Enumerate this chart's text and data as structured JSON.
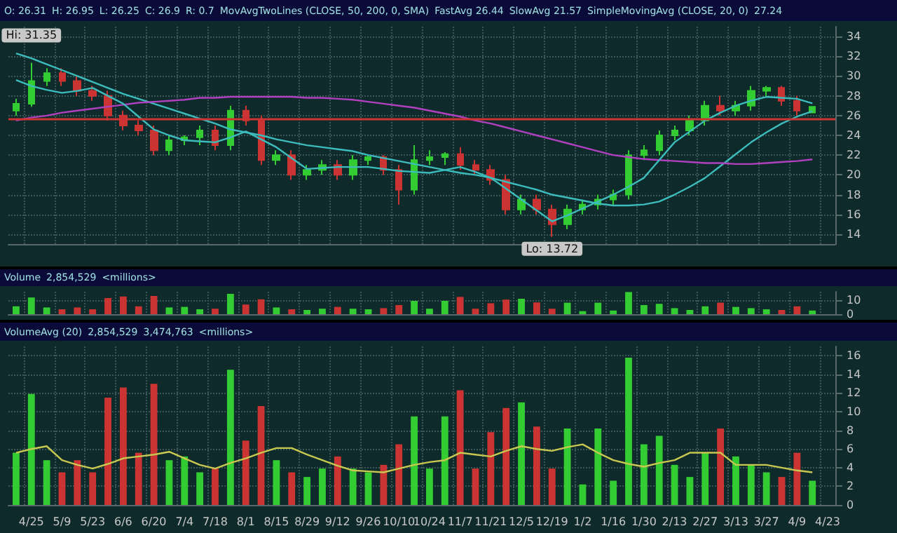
{
  "chart_data": [
    {
      "type": "candlestick",
      "categories": [
        null,
        "4/25",
        null,
        "5/9",
        null,
        "5/23",
        null,
        "6/6",
        null,
        "6/20",
        null,
        "7/4",
        null,
        "7/18",
        null,
        "8/1",
        null,
        "8/15",
        null,
        "8/29",
        null,
        "9/12",
        null,
        "9/26",
        null,
        "10/10",
        null,
        "10/24",
        null,
        "11/7",
        null,
        "11/21",
        null,
        "12/5",
        null,
        "12/19",
        null,
        "1/2",
        null,
        "1/16",
        null,
        "1/30",
        null,
        "2/13",
        null,
        "2/27",
        null,
        "3/13",
        null,
        "3/27",
        null,
        "4/9",
        null,
        "4/23"
      ],
      "ohlc": [
        [
          26.5,
          27.7,
          26,
          27.2
        ],
        [
          27.2,
          31.35,
          26.9,
          29.5
        ],
        [
          29.5,
          30.8,
          29,
          30.3
        ],
        [
          30.3,
          30.8,
          29,
          29.5
        ],
        [
          29.5,
          30,
          28,
          28.5
        ],
        [
          28.5,
          29,
          27.5,
          28
        ],
        [
          28,
          28.5,
          25.5,
          26
        ],
        [
          26,
          26.5,
          24.5,
          25
        ],
        [
          25,
          25.5,
          24,
          24.5
        ],
        [
          24.5,
          25,
          22,
          22.5
        ],
        [
          22.5,
          24,
          22,
          23.5
        ],
        [
          23.5,
          24,
          23,
          23.8
        ],
        [
          23.8,
          25,
          23,
          24.5
        ],
        [
          24.5,
          25,
          22.5,
          23
        ],
        [
          23,
          27,
          22.5,
          26.5
        ],
        [
          26.5,
          27,
          25,
          25.5
        ],
        [
          25.5,
          26,
          21,
          21.5
        ],
        [
          21.5,
          22.5,
          21,
          22
        ],
        [
          22,
          22.5,
          19.5,
          20
        ],
        [
          20,
          21,
          19.5,
          20.5
        ],
        [
          20.5,
          21.5,
          20,
          21
        ],
        [
          21,
          21.5,
          19.5,
          20
        ],
        [
          20,
          22,
          19.5,
          21.5
        ],
        [
          21.5,
          22,
          21,
          21.8
        ],
        [
          21.8,
          22,
          20,
          20.5
        ],
        [
          20.5,
          21,
          17,
          18.5
        ],
        [
          18.5,
          23,
          18,
          21.5
        ],
        [
          21.5,
          22.5,
          21,
          21.8
        ],
        [
          21.8,
          22.3,
          21,
          22.1
        ],
        [
          22.1,
          22.8,
          20.5,
          21
        ],
        [
          21,
          21.5,
          20,
          20.5
        ],
        [
          20.5,
          21,
          19,
          19.5
        ],
        [
          19.5,
          20,
          16,
          16.5
        ],
        [
          16.5,
          18,
          16,
          17.5
        ],
        [
          17.5,
          18,
          16,
          16.5
        ],
        [
          16.5,
          17,
          13.72,
          15
        ],
        [
          15,
          17,
          14.5,
          16.5
        ],
        [
          16.5,
          17.5,
          16,
          17
        ],
        [
          17,
          18,
          16.5,
          17.5
        ],
        [
          17.5,
          18.5,
          17,
          18
        ],
        [
          18,
          22.5,
          17.5,
          22
        ],
        [
          22,
          23,
          21.5,
          22.5
        ],
        [
          22.5,
          24.5,
          22,
          24
        ],
        [
          24,
          25,
          23.5,
          24.5
        ],
        [
          24.5,
          26,
          24,
          25.5
        ],
        [
          25.5,
          27.5,
          25,
          27
        ],
        [
          27,
          28,
          26,
          26.5
        ],
        [
          26.5,
          27.5,
          26,
          27
        ],
        [
          27,
          29,
          26.5,
          28.5
        ],
        [
          28.5,
          29,
          28,
          28.8
        ],
        [
          28.8,
          29,
          27,
          27.5
        ],
        [
          27.5,
          28,
          26,
          26.5
        ],
        [
          26.31,
          26.95,
          26.25,
          26.9
        ],
        null
      ],
      "colors": [
        "#33cc33",
        "#33cc33",
        "#33cc33",
        "#cc3333",
        "#cc3333",
        "#cc3333",
        "#cc3333",
        "#cc3333",
        "#cc3333",
        "#cc3333",
        "#33cc33",
        "#33cc33",
        "#33cc33",
        "#cc3333",
        "#33cc33",
        "#cc3333",
        "#cc3333",
        "#33cc33",
        "#cc3333",
        "#33cc33",
        "#33cc33",
        "#cc3333",
        "#33cc33",
        "#33cc33",
        "#cc3333",
        "#cc3333",
        "#33cc33",
        "#33cc33",
        "#33cc33",
        "#cc3333",
        "#cc3333",
        "#cc3333",
        "#cc3333",
        "#33cc33",
        "#cc3333",
        "#cc3333",
        "#33cc33",
        "#33cc33",
        "#33cc33",
        "#33cc33",
        "#33cc33",
        "#33cc33",
        "#33cc33",
        "#33cc33",
        "#33cc33",
        "#33cc33",
        "#cc3333",
        "#33cc33",
        "#33cc33",
        "#33cc33",
        "#cc3333",
        "#cc3333",
        "#33cc33",
        null
      ],
      "series": [
        {
          "type": "line",
          "color": "#3cbcbc",
          "values": [
            32.3,
            31.8,
            31.2,
            30.6,
            30,
            29.4,
            28.8,
            28.2,
            27.7,
            27.2,
            26.7,
            26.2,
            25.7,
            25.2,
            24.6,
            24.3,
            24,
            23.6,
            23.3,
            23,
            22.8,
            22.6,
            22.4,
            22,
            21.7,
            21.4,
            21.1,
            20.8,
            20.5,
            20.2,
            20,
            19.7,
            19.3,
            18.9,
            18.5,
            18,
            17.7,
            17.4,
            17.1,
            16.9,
            16.9,
            17,
            17.3,
            18,
            18.8,
            19.7,
            20.9,
            22.1,
            23.3,
            24.3,
            25.2,
            25.9,
            26.44,
            null
          ]
        },
        {
          "type": "line",
          "color": "#b040c0",
          "values": [
            25.5,
            25.8,
            26,
            26.3,
            26.5,
            26.7,
            26.9,
            27.1,
            27.3,
            27.4,
            27.5,
            27.6,
            27.8,
            27.8,
            27.9,
            27.9,
            27.9,
            27.9,
            27.9,
            27.8,
            27.8,
            27.7,
            27.6,
            27.4,
            27.2,
            27,
            26.8,
            26.5,
            26.2,
            25.9,
            25.5,
            25.2,
            24.8,
            24.4,
            24,
            23.6,
            23.2,
            22.8,
            22.4,
            22,
            21.8,
            21.6,
            21.5,
            21.4,
            21.3,
            21.2,
            21.2,
            21.1,
            21.1,
            21.2,
            21.3,
            21.4,
            21.57,
            null
          ]
        },
        {
          "type": "line",
          "color": "#3cbcbc",
          "values": [
            29.6,
            29,
            28.6,
            28.3,
            28.5,
            28.8,
            28,
            27.2,
            25.9,
            24.6,
            24,
            23.5,
            23.4,
            23.3,
            23.8,
            24.4,
            23.6,
            22.8,
            21.7,
            20.6,
            20.7,
            20.8,
            20.8,
            20.8,
            20.6,
            20.4,
            20.3,
            20.2,
            20.5,
            20.8,
            20.3,
            19.7,
            18.6,
            17.5,
            16.4,
            15.3,
            15.9,
            16.6,
            17.3,
            18,
            18.8,
            19.7,
            21.5,
            23.3,
            24.4,
            25.5,
            26.3,
            27,
            27.5,
            27.9,
            27.8,
            27.7,
            27.24,
            null
          ]
        }
      ],
      "annotations": [
        "O: 26.31",
        "H: 26.95",
        "L: 26.25",
        "C: 26.9",
        "R: 0.7",
        "MovAvgTwoLines (CLOSE, 50, 200, 0, SMA)",
        "FastAvg 26.44",
        "SlowAvg 21.57",
        "SimpleMovingAvg (CLOSE, 20, 0)",
        "27.24",
        {
          "text": "Hi: 31.35",
          "x": "4/25",
          "y": 31.35
        },
        {
          "text": "Lo: 13.72",
          "x": "12/19",
          "y": 13.72
        }
      ],
      "ref_lines": [
        {
          "axis": "y",
          "value": 25.7,
          "color": "#cc3333"
        }
      ],
      "ylim": [
        13,
        35
      ],
      "yticks": [
        14,
        16,
        18,
        20,
        22,
        24,
        26,
        28,
        30,
        32,
        34
      ],
      "grid": true,
      "tick_labels": "y"
    },
    {
      "type": "bar",
      "categories": [
        null,
        "4/25",
        null,
        "5/9",
        null,
        "5/23",
        null,
        "6/6",
        null,
        "6/20",
        null,
        "7/4",
        null,
        "7/18",
        null,
        "8/1",
        null,
        "8/15",
        null,
        "8/29",
        null,
        "9/12",
        null,
        "9/26",
        null,
        "10/10",
        null,
        "10/24",
        null,
        "11/7",
        null,
        "11/21",
        null,
        "12/5",
        null,
        "12/19",
        null,
        "1/2",
        null,
        "1/16",
        null,
        "1/30",
        null,
        "2/13",
        null,
        "2/27",
        null,
        "3/13",
        null,
        "3/27",
        null,
        "4/9",
        null,
        "4/23"
      ],
      "values": [
        5.6,
        11.9,
        4.8,
        3.5,
        4.8,
        3.5,
        11.5,
        12.6,
        5.6,
        13,
        4.8,
        5.2,
        3.5,
        3.9,
        14.5,
        6.9,
        10.6,
        4.8,
        3.5,
        3,
        3.9,
        5.2,
        3.9,
        3.5,
        4.3,
        6.5,
        9.5,
        3.9,
        9.5,
        12.3,
        3.9,
        7.8,
        10.4,
        11,
        8.4,
        3.9,
        8.2,
        2.2,
        8.2,
        2.6,
        15.8,
        6.5,
        7.4,
        4.3,
        3,
        5.6,
        8.2,
        5.2,
        4.3,
        3.5,
        3,
        5.6,
        2.6,
        null
      ],
      "colors": [
        "#33cc33",
        "#33cc33",
        "#33cc33",
        "#cc3333",
        "#cc3333",
        "#cc3333",
        "#cc3333",
        "#cc3333",
        "#cc3333",
        "#cc3333",
        "#33cc33",
        "#33cc33",
        "#33cc33",
        "#cc3333",
        "#33cc33",
        "#cc3333",
        "#cc3333",
        "#33cc33",
        "#cc3333",
        "#33cc33",
        "#33cc33",
        "#cc3333",
        "#33cc33",
        "#33cc33",
        "#cc3333",
        "#cc3333",
        "#33cc33",
        "#33cc33",
        "#33cc33",
        "#cc3333",
        "#cc3333",
        "#cc3333",
        "#cc3333",
        "#33cc33",
        "#cc3333",
        "#cc3333",
        "#33cc33",
        "#33cc33",
        "#33cc33",
        "#33cc33",
        "#33cc33",
        "#33cc33",
        "#33cc33",
        "#33cc33",
        "#33cc33",
        "#33cc33",
        "#cc3333",
        "#33cc33",
        "#33cc33",
        "#33cc33",
        "#cc3333",
        "#cc3333",
        "#33cc33",
        null
      ],
      "annotations": [
        "Volume",
        "2,854,529",
        "<millions>"
      ],
      "ylim": [
        0,
        16
      ],
      "yticks": [
        0,
        10
      ],
      "grid": true,
      "tick_labels": "y"
    },
    {
      "type": "bar",
      "categories": [
        null,
        "4/25",
        null,
        "5/9",
        null,
        "5/23",
        null,
        "6/6",
        null,
        "6/20",
        null,
        "7/4",
        null,
        "7/18",
        null,
        "8/1",
        null,
        "8/15",
        null,
        "8/29",
        null,
        "9/12",
        null,
        "9/26",
        null,
        "10/10",
        null,
        "10/24",
        null,
        "11/7",
        null,
        "11/21",
        null,
        "12/5",
        null,
        "12/19",
        null,
        "1/2",
        null,
        "1/16",
        null,
        "1/30",
        null,
        "2/13",
        null,
        "2/27",
        null,
        "3/13",
        null,
        "3/27",
        null,
        "4/9",
        null,
        "4/23"
      ],
      "values": [
        5.6,
        11.9,
        4.8,
        3.5,
        4.8,
        3.5,
        11.5,
        12.6,
        5.6,
        13,
        4.8,
        5.2,
        3.5,
        3.9,
        14.5,
        6.9,
        10.6,
        4.8,
        3.5,
        3,
        3.9,
        5.2,
        3.9,
        3.5,
        4.3,
        6.5,
        9.5,
        3.9,
        9.5,
        12.3,
        3.9,
        7.8,
        10.4,
        11,
        8.4,
        3.9,
        8.2,
        2.2,
        8.2,
        2.6,
        15.8,
        6.5,
        7.4,
        4.3,
        3,
        5.6,
        8.2,
        5.2,
        4.3,
        3.5,
        3,
        5.6,
        2.6,
        null
      ],
      "colors": [
        "#33cc33",
        "#33cc33",
        "#33cc33",
        "#cc3333",
        "#cc3333",
        "#cc3333",
        "#cc3333",
        "#cc3333",
        "#cc3333",
        "#cc3333",
        "#33cc33",
        "#33cc33",
        "#33cc33",
        "#cc3333",
        "#33cc33",
        "#cc3333",
        "#cc3333",
        "#33cc33",
        "#cc3333",
        "#33cc33",
        "#33cc33",
        "#cc3333",
        "#33cc33",
        "#33cc33",
        "#cc3333",
        "#cc3333",
        "#33cc33",
        "#33cc33",
        "#33cc33",
        "#cc3333",
        "#cc3333",
        "#cc3333",
        "#cc3333",
        "#33cc33",
        "#cc3333",
        "#cc3333",
        "#33cc33",
        "#33cc33",
        "#33cc33",
        "#33cc33",
        "#33cc33",
        "#33cc33",
        "#33cc33",
        "#33cc33",
        "#33cc33",
        "#33cc33",
        "#cc3333",
        "#33cc33",
        "#33cc33",
        "#33cc33",
        "#cc3333",
        "#cc3333",
        "#33cc33",
        null
      ],
      "series": [
        {
          "type": "line",
          "color": "#c8c850",
          "values": [
            5.6,
            6,
            6.3,
            4.8,
            4.3,
            3.9,
            4.4,
            5,
            5.2,
            5.4,
            5.7,
            5,
            4.3,
            3.9,
            4.5,
            5,
            5.6,
            6.1,
            6.1,
            5.4,
            4.8,
            4.2,
            3.7,
            3.6,
            3.5,
            3.9,
            4.3,
            4.6,
            4.8,
            5.6,
            5.4,
            5.2,
            5.8,
            6.3,
            6,
            5.8,
            6.2,
            6.5,
            5.6,
            4.8,
            4.4,
            4.1,
            4.5,
            4.8,
            5.6,
            5.6,
            5.6,
            4.3,
            4.3,
            4.3,
            4,
            3.7,
            3.5,
            null
          ]
        }
      ],
      "annotations": [
        "VolumeAvg (20)",
        "2,854,529",
        "3,474,763",
        "<millions>"
      ],
      "ylim": [
        0,
        17
      ],
      "yticks": [
        0,
        2,
        4,
        6,
        8,
        10,
        12,
        14,
        16
      ],
      "grid": true
    }
  ]
}
